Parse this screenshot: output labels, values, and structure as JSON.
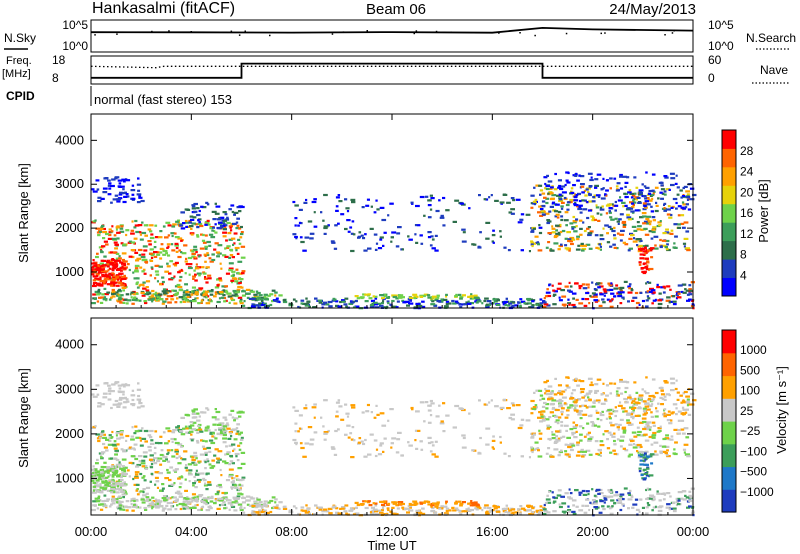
{
  "header": {
    "station": "Hankasalmi (fitACF)",
    "beam": "Beam 06",
    "date": "24/May/2013"
  },
  "noise_panel": {
    "left_label": "N.Sky",
    "right_label": "N.Search",
    "left_ticks": [
      "10^5",
      "10^0"
    ],
    "right_ticks": [
      "10^5",
      "10^0"
    ]
  },
  "freq_panel": {
    "left_label": "Freq.",
    "left_unit": "[MHz]",
    "right_label": "Nave",
    "left_ticks": [
      "18",
      "8"
    ],
    "right_ticks": [
      "60",
      "0"
    ]
  },
  "cpid": {
    "label": "CPID",
    "text": "normal (fast stereo) 153"
  },
  "colors": {
    "power_scale": [
      "#0000ff",
      "#1e3cbe",
      "#2d6e4a",
      "#3c9e5a",
      "#6ed24a",
      "#e6d20a",
      "#ffa000",
      "#ff6400",
      "#ff0000"
    ],
    "velocity_scale": [
      "#1e3cbe",
      "#1e78c8",
      "#3c9e5a",
      "#6ed24a",
      "#c8c8c8",
      "#ffa000",
      "#ff6400",
      "#ff0000"
    ],
    "ground_scatter": "#c8c8c8"
  },
  "chart_data": [
    {
      "type": "line",
      "title": "N.Sky / N.Search",
      "x": [
        "00:00",
        "04:00",
        "08:00",
        "12:00",
        "16:00",
        "18:00",
        "20:00",
        "00:00"
      ],
      "series": [
        {
          "name": "N.Sky",
          "values": [
            1000,
            1000,
            1000,
            1000,
            1000,
            5000,
            4000,
            2000
          ]
        }
      ],
      "ylim": [
        1,
        100000
      ],
      "log_scale": true
    },
    {
      "type": "line",
      "title": "Freq. / Nave",
      "x_hours": [
        0,
        2.6,
        2.9,
        6,
        18,
        24
      ],
      "series": [
        {
          "name": "Freq.",
          "values": [
            10.2,
            10.2,
            10.2,
            10.2,
            10.2,
            10.2
          ]
        },
        {
          "name": "Nave",
          "values": [
            25,
            22,
            25,
            25,
            25,
            25
          ]
        }
      ],
      "freq_steps": [
        {
          "t0": 0,
          "t1": 6,
          "value": 10.2
        },
        {
          "t0": 6,
          "t1": 18,
          "value": 15.3
        },
        {
          "t0": 18,
          "t1": 24,
          "value": 10.2
        }
      ],
      "ylim_left": [
        8,
        18
      ],
      "ylim_right": [
        0,
        60
      ]
    },
    {
      "type": "heatmap",
      "title": "Power",
      "xlabel": "Time UT",
      "ylabel": "Slant Range [km]",
      "x_ticks": [
        "00:00",
        "04:00",
        "08:00",
        "12:00",
        "16:00",
        "20:00",
        "00:00"
      ],
      "y_ticks": [
        "1000",
        "2000",
        "3000",
        "4000"
      ],
      "xlim_hours": [
        0,
        24
      ],
      "ylim_km": [
        180,
        4600
      ],
      "colorbar_label": "Power [dB]",
      "colorbar_ticks": [
        "28",
        "24",
        "20",
        "16",
        "12",
        "8",
        "4"
      ],
      "colorbar_range": [
        0,
        30
      ]
    },
    {
      "type": "heatmap",
      "title": "Velocity",
      "xlabel": "Time UT",
      "ylabel": "Slant Range [km]",
      "x_ticks": [
        "00:00",
        "04:00",
        "08:00",
        "12:00",
        "16:00",
        "20:00",
        "00:00"
      ],
      "y_ticks": [
        "1000",
        "2000",
        "3000",
        "4000"
      ],
      "xlim_hours": [
        0,
        24
      ],
      "ylim_km": [
        180,
        4600
      ],
      "colorbar_label": "Velocity [m s⁻¹]",
      "colorbar_ticks": [
        "1000",
        "500",
        "100",
        "25",
        "−25",
        "−100",
        "−500",
        "−1000"
      ]
    }
  ]
}
